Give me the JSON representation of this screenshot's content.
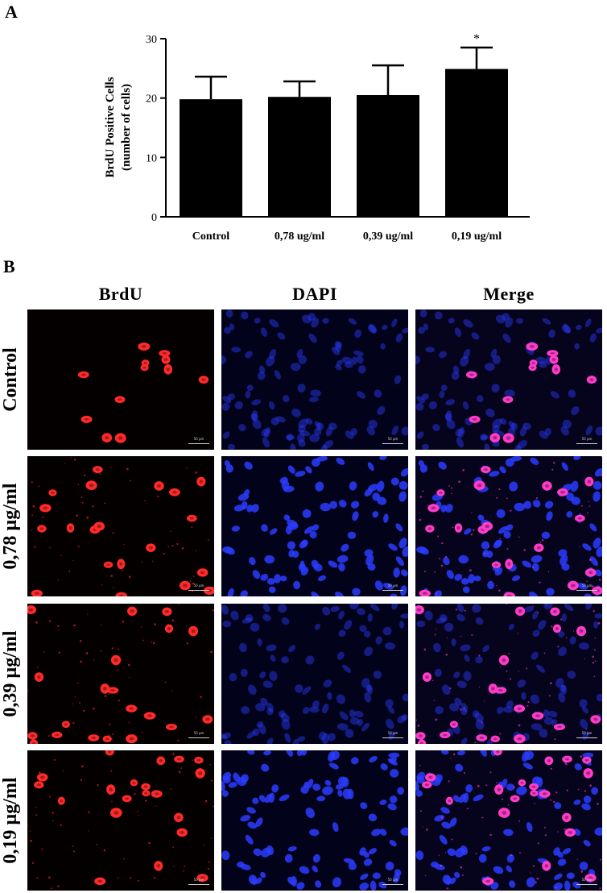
{
  "panels": {
    "a_label": "A",
    "b_label": "B"
  },
  "chart_data": {
    "type": "bar",
    "ylabel": "BrdU Positive Cells",
    "ylabel_sub": "(number of cells)",
    "categories": [
      "Control",
      "0,78 ug/ml",
      "0,39 ug/ml",
      "0,19 ug/ml"
    ],
    "values": [
      19.8,
      20.2,
      20.5,
      24.9
    ],
    "errors": [
      3.8,
      2.6,
      5.0,
      3.6
    ],
    "annotations": [
      "",
      "",
      "",
      "*"
    ],
    "yticks": [
      0,
      10,
      20,
      30
    ],
    "ylim": [
      0,
      30
    ],
    "bar_color": "#000000",
    "grid": false
  },
  "microscopy": {
    "columns": [
      "BrdU",
      "DAPI",
      "Merge"
    ],
    "rows": [
      "Control",
      "0,78 µg/ml",
      "0,39 µg/ml",
      "0,19 µg/ml"
    ],
    "scale_bar_label": "50 µm",
    "colors": {
      "brdu": "#ff2a2a",
      "dapi": "#2a3cff",
      "merge": "#ff3cc8"
    }
  }
}
